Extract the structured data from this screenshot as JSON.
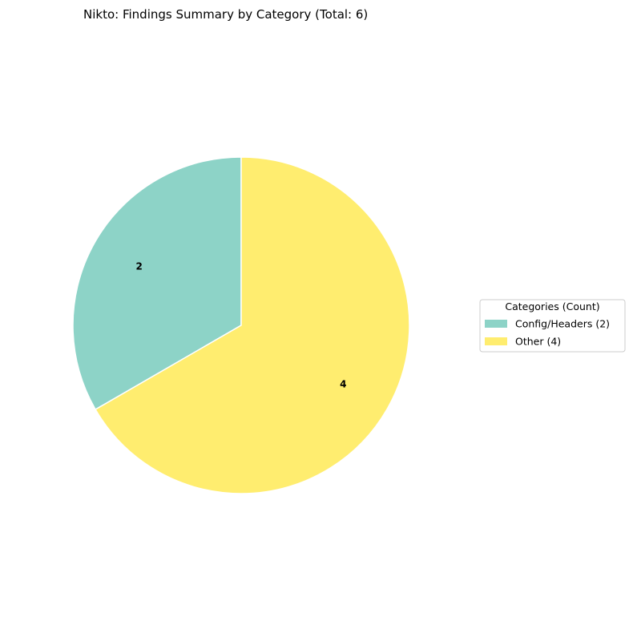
{
  "chart_data": {
    "type": "pie",
    "title": "Nikto: Findings Summary by Category (Total: 6)",
    "legend_title": "Categories (Count)",
    "legend_placement": "right",
    "start_angle_deg": 90,
    "direction": "counterclockwise",
    "slices": [
      {
        "label": "Config/Headers",
        "value": 2,
        "legend": "Config/Headers (2)",
        "data_label": "2",
        "color": "#8dd3c7"
      },
      {
        "label": "Other",
        "value": 4,
        "legend": "Other (4)",
        "data_label": "4",
        "color": "#ffed6f"
      }
    ],
    "slice_edge_color": "#ffffff"
  }
}
